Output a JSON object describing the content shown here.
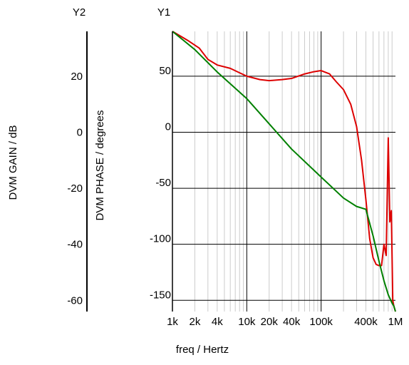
{
  "chart_data": {
    "type": "line",
    "title": "",
    "xlabel": "freq / Hertz",
    "x_scale": "log",
    "xlim": [
      1000,
      1000000
    ],
    "x_ticks": [
      {
        "value": 1000,
        "label": "1k"
      },
      {
        "value": 2000,
        "label": "2k"
      },
      {
        "value": 4000,
        "label": "4k"
      },
      {
        "value": 10000,
        "label": "10k"
      },
      {
        "value": 20000,
        "label": "20k"
      },
      {
        "value": 40000,
        "label": "40k"
      },
      {
        "value": 100000,
        "label": "100k"
      },
      {
        "value": 400000,
        "label": "400k"
      },
      {
        "value": 1000000,
        "label": "1M"
      }
    ],
    "grid": true,
    "axes": {
      "y1": {
        "name": "Y1",
        "label": "DVM PHASE / degrees",
        "ylim": [
          -160,
          90
        ],
        "ticks": [
          {
            "value": 50,
            "label": "50"
          },
          {
            "value": 0,
            "label": "0"
          },
          {
            "value": -50,
            "label": "-50"
          },
          {
            "value": -100,
            "label": "-100"
          },
          {
            "value": -150,
            "label": "-150"
          }
        ]
      },
      "y2": {
        "name": "Y2",
        "label": "DVM GAIN / dB",
        "ylim": [
          -64,
          36
        ],
        "ticks": [
          {
            "value": 20,
            "label": "20"
          },
          {
            "value": 0,
            "label": "0"
          },
          {
            "value": -20,
            "label": "-20"
          },
          {
            "value": -40,
            "label": "-40"
          },
          {
            "value": -60,
            "label": "-60"
          }
        ]
      }
    },
    "series": [
      {
        "color": "#dd0000",
        "axis": "y1",
        "points": [
          [
            1000,
            90
          ],
          [
            1600,
            82
          ],
          [
            2300,
            75
          ],
          [
            3000,
            65
          ],
          [
            4000,
            60
          ],
          [
            6000,
            57
          ],
          [
            8000,
            53
          ],
          [
            10000,
            50
          ],
          [
            15000,
            47
          ],
          [
            20000,
            46
          ],
          [
            30000,
            47
          ],
          [
            40000,
            48
          ],
          [
            60000,
            52
          ],
          [
            80000,
            54
          ],
          [
            100000,
            55
          ],
          [
            130000,
            52
          ],
          [
            160000,
            45
          ],
          [
            200000,
            38
          ],
          [
            250000,
            25
          ],
          [
            300000,
            5
          ],
          [
            350000,
            -25
          ],
          [
            400000,
            -60
          ],
          [
            450000,
            -95
          ],
          [
            500000,
            -112
          ],
          [
            550000,
            -118
          ],
          [
            600000,
            -119
          ],
          [
            650000,
            -119
          ],
          [
            700000,
            -100
          ],
          [
            750000,
            -110
          ],
          [
            800000,
            -5
          ],
          [
            840000,
            -80
          ],
          [
            880000,
            -70
          ],
          [
            920000,
            -150
          ],
          [
            950000,
            -155
          ],
          [
            1000000,
            -160
          ]
        ]
      },
      {
        "color": "#008000",
        "axis": "y2",
        "points": [
          [
            1000,
            36
          ],
          [
            2000,
            29.5
          ],
          [
            4000,
            21.5
          ],
          [
            10000,
            12
          ],
          [
            20000,
            3
          ],
          [
            40000,
            -6
          ],
          [
            100000,
            -16
          ],
          [
            200000,
            -23.5
          ],
          [
            300000,
            -26.5
          ],
          [
            400000,
            -27.5
          ],
          [
            500000,
            -37
          ],
          [
            600000,
            -46
          ],
          [
            700000,
            -53
          ],
          [
            800000,
            -58
          ],
          [
            900000,
            -61
          ],
          [
            950000,
            -62
          ],
          [
            1000000,
            -64
          ]
        ]
      }
    ]
  }
}
